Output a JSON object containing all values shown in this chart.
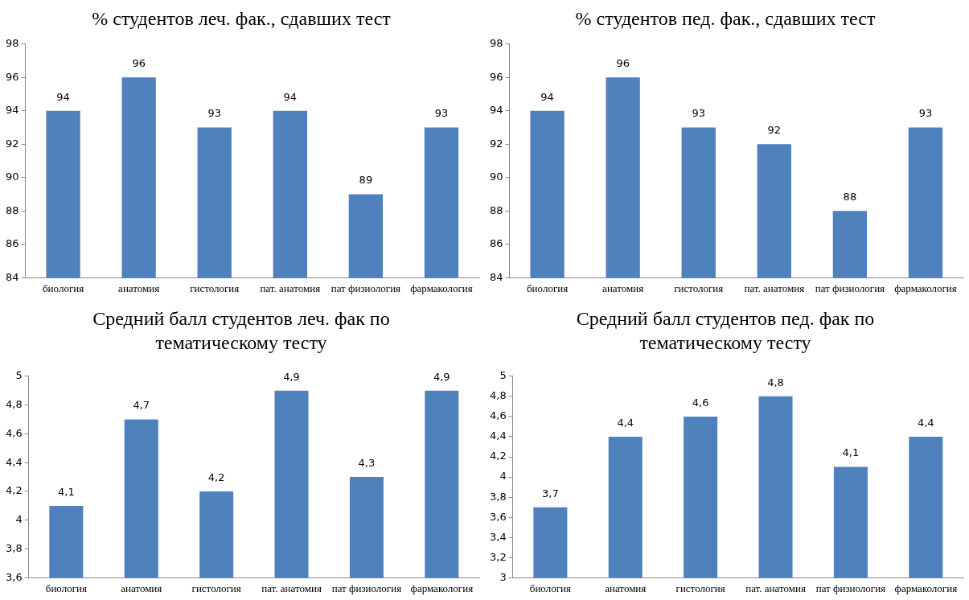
{
  "chart_data": [
    {
      "type": "bar",
      "title": "% студентов леч. фак., сдавших тест",
      "categories": [
        "биология",
        "анатомия",
        "гистология",
        "пат. анатомия",
        "пат физиология",
        "фармакология"
      ],
      "values": [
        94,
        96,
        93,
        94,
        89,
        93
      ],
      "color": "#4f81bd",
      "ylim": [
        84,
        98
      ],
      "yticks": [
        84,
        86,
        88,
        90,
        92,
        94,
        96,
        98
      ],
      "data_labels": true,
      "grid": false,
      "legend": false
    },
    {
      "type": "bar",
      "title": "% студентов пед. фак., сдавших тест",
      "categories": [
        "биология",
        "анатомия",
        "гистология",
        "пат. анатомия",
        "пат физиология",
        "фармакология"
      ],
      "values": [
        94,
        96,
        93,
        92,
        88,
        93
      ],
      "color": "#4f81bd",
      "ylim": [
        84,
        98
      ],
      "yticks": [
        84,
        86,
        88,
        90,
        92,
        94,
        96,
        98
      ],
      "data_labels": true,
      "grid": false,
      "legend": false
    },
    {
      "type": "bar",
      "title": "Средний балл студентов леч. фак по тематическому тесту",
      "categories": [
        "биология",
        "анатомия",
        "гистология",
        "пат. анатомия",
        "пат физиология",
        "фармакология"
      ],
      "values": [
        4.1,
        4.7,
        4.2,
        4.9,
        4.3,
        4.9
      ],
      "value_labels": [
        "4,1",
        "4,7",
        "4,2",
        "4,9",
        "4,3",
        "4,9"
      ],
      "color": "#4f81bd",
      "ylim": [
        3.6,
        5
      ],
      "yticks": [
        {
          "value": 3.6,
          "label": "3,6"
        },
        {
          "value": 3.8,
          "label": "3,8"
        },
        4,
        {
          "value": 4.2,
          "label": "4,2"
        },
        {
          "value": 4.4,
          "label": "4,4"
        },
        {
          "value": 4.6,
          "label": "4,6"
        },
        {
          "value": 4.8,
          "label": "4,8"
        },
        5
      ],
      "grid": false,
      "legend": false
    },
    {
      "type": "bar",
      "title": "Средний балл студентов пед. фак по тематическому тесту",
      "categories": [
        "биология",
        "анатомия",
        "гистология",
        "пат. анатомия",
        "пат физиология",
        "фармакология"
      ],
      "values": [
        3.7,
        4.4,
        4.6,
        4.8,
        4.1,
        4.4
      ],
      "value_labels": [
        "3,7",
        "4,4",
        "4,6",
        "4,8",
        "4,1",
        "4,4"
      ],
      "color": "#4f81bd",
      "ylim": [
        3,
        5
      ],
      "yticks": [
        3,
        {
          "value": 3.2,
          "label": "3,2"
        },
        {
          "value": 3.4,
          "label": "3,4"
        },
        {
          "value": 3.6,
          "label": "3,6"
        },
        {
          "value": 3.8,
          "label": "3,8"
        },
        4,
        {
          "value": 4.2,
          "label": "4,2"
        },
        {
          "value": 4.4,
          "label": "4,4"
        },
        {
          "value": 4.6,
          "label": "4,6"
        },
        {
          "value": 4.8,
          "label": "4,8"
        },
        5
      ],
      "grid": false,
      "legend": false
    }
  ]
}
